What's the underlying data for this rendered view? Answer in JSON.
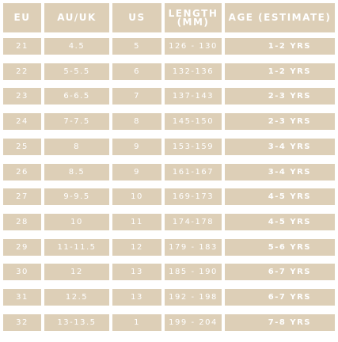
{
  "colors": {
    "cell_background": "#ddcfb7",
    "text": "#ffffff",
    "page_background": "#ffffff"
  },
  "headers": [
    "EU",
    "AU/UK",
    "US",
    "LENGTH (MM)",
    "AGE (ESTIMATE)"
  ],
  "rows": [
    [
      "21",
      "4.5",
      "5",
      "126 - 130",
      "1-2 YRS"
    ],
    [
      "22",
      "5-5.5",
      "6",
      "132-136",
      "1-2 YRS"
    ],
    [
      "23",
      "6-6.5",
      "7",
      "137-143",
      "2-3 YRS"
    ],
    [
      "24",
      "7-7.5",
      "8",
      "145-150",
      "2-3 YRS"
    ],
    [
      "25",
      "8",
      "9",
      "153-159",
      "3-4 YRS"
    ],
    [
      "26",
      "8.5",
      "9",
      "161-167",
      "3-4 YRS"
    ],
    [
      "27",
      "9-9.5",
      "10",
      "169-173",
      "4-5 YRS"
    ],
    [
      "28",
      "10",
      "11",
      "174-178",
      "4-5 YRS"
    ],
    [
      "29",
      "11-11.5",
      "12",
      "179 - 183",
      "5-6 YRS"
    ],
    [
      "30",
      "12",
      "13",
      "185 - 190",
      "6-7 YRS"
    ],
    [
      "31",
      "12.5",
      "13",
      "192 - 198",
      "6-7 YRS"
    ],
    [
      "32",
      "13-13.5",
      "1",
      "199 - 204",
      "7-8 YRS"
    ]
  ]
}
